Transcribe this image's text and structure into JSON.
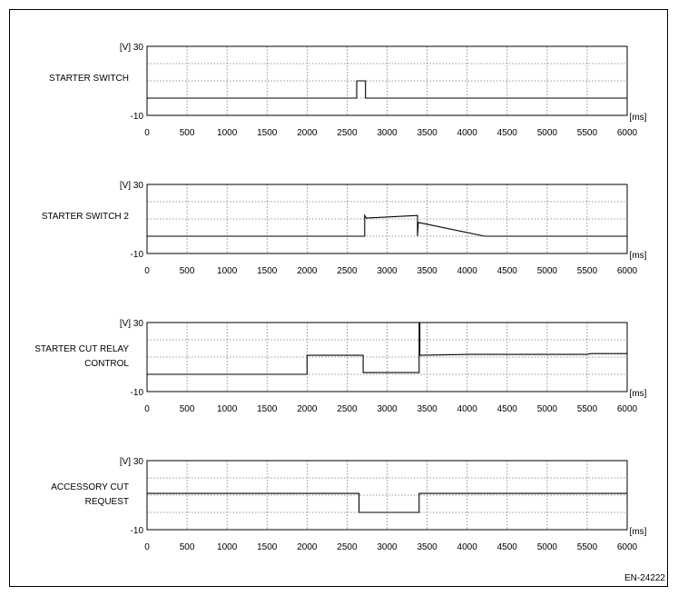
{
  "figure_id": "EN-24222",
  "chart_data": [
    {
      "type": "line",
      "label_lines": [
        "STARTER SWITCH"
      ],
      "y_unit_label": "[V]",
      "x_unit_label": "[ms]",
      "ylim": [
        -10,
        30
      ],
      "ytick_labels": [
        "30",
        "-10"
      ],
      "xlim": [
        0,
        6000
      ],
      "xtick_labels": [
        "0",
        "500",
        "1000",
        "1500",
        "2000",
        "2500",
        "3000",
        "3500",
        "4000",
        "4500",
        "5000",
        "5500",
        "6000"
      ],
      "grid": true,
      "series": [
        {
          "x": [
            0,
            2620,
            2620,
            2730,
            2730,
            6000
          ],
          "y": [
            0,
            0,
            10,
            10,
            0,
            0
          ]
        }
      ]
    },
    {
      "type": "line",
      "label_lines": [
        "STARTER SWITCH 2"
      ],
      "y_unit_label": "[V]",
      "x_unit_label": "[ms]",
      "ylim": [
        -10,
        30
      ],
      "ytick_labels": [
        "30",
        "-10"
      ],
      "xlim": [
        0,
        6000
      ],
      "xtick_labels": [
        "0",
        "500",
        "1000",
        "1500",
        "2000",
        "2500",
        "3000",
        "3500",
        "4000",
        "4500",
        "5000",
        "5500",
        "6000"
      ],
      "grid": true,
      "series": [
        {
          "x": [
            0,
            2720,
            2720,
            2740,
            3370,
            3380,
            3380,
            3390,
            4220,
            6000
          ],
          "y": [
            0,
            0,
            12,
            10.5,
            12,
            12,
            0,
            8,
            0,
            0
          ]
        }
      ]
    },
    {
      "type": "line",
      "label_lines": [
        "STARTER CUT RELAY",
        "CONTROL"
      ],
      "y_unit_label": "[V]",
      "x_unit_label": "[ms]",
      "ylim": [
        -10,
        30
      ],
      "ytick_labels": [
        "30",
        "-10"
      ],
      "xlim": [
        0,
        6000
      ],
      "xtick_labels": [
        "0",
        "500",
        "1000",
        "1500",
        "2000",
        "2500",
        "3000",
        "3500",
        "4000",
        "4500",
        "5000",
        "5500",
        "6000"
      ],
      "grid": true,
      "series": [
        {
          "x": [
            0,
            2000,
            2000,
            2700,
            2700,
            3400,
            3400,
            3410,
            3410,
            4000,
            5500,
            5550,
            6000
          ],
          "y": [
            0,
            0,
            11,
            11,
            1,
            1,
            40,
            40,
            11,
            11.5,
            11.5,
            12,
            12
          ]
        }
      ]
    },
    {
      "type": "line",
      "label_lines": [
        "ACCESSORY CUT",
        "REQUEST"
      ],
      "y_unit_label": "[V]",
      "x_unit_label": "[ms]",
      "ylim": [
        -10,
        30
      ],
      "ytick_labels": [
        "30",
        "-10"
      ],
      "xlim": [
        0,
        6000
      ],
      "xtick_labels": [
        "0",
        "500",
        "1000",
        "1500",
        "2000",
        "2500",
        "3000",
        "3500",
        "4000",
        "4500",
        "5000",
        "5500",
        "6000"
      ],
      "grid": true,
      "series": [
        {
          "x": [
            0,
            2650,
            2650,
            3400,
            3400,
            6000
          ],
          "y": [
            11,
            11,
            0,
            0,
            11,
            11
          ]
        }
      ]
    }
  ]
}
